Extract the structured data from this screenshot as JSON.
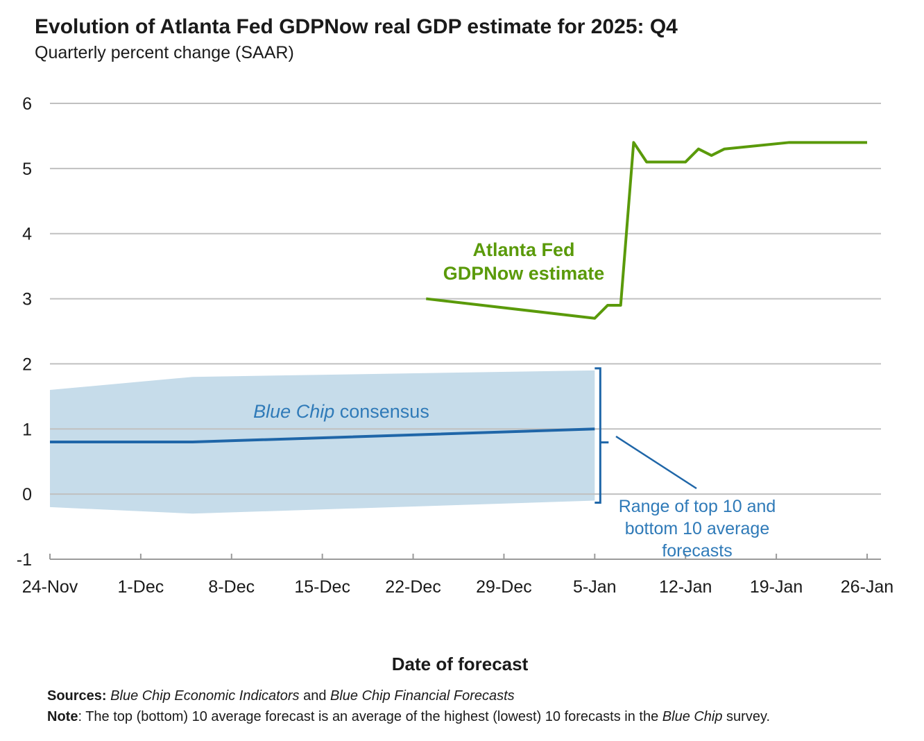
{
  "header": {
    "title": "Evolution of Atlanta Fed GDPNow real GDP estimate for 2025: Q4",
    "subtitle": "Quarterly percent change (SAAR)"
  },
  "colors": {
    "gdpnow": "#5a9a0a",
    "consensus_line": "#1f66a8",
    "band_fill": "#c6dcea",
    "range_label": "#2f7ab8",
    "gridline": "#c0c0c0",
    "axis": "#9a9a9a",
    "text": "#1a1a1a"
  },
  "chart_data": {
    "type": "line",
    "xlabel": "Date of forecast",
    "ylabel": "",
    "x_domain": [
      0,
      63
    ],
    "x_ticks": [
      {
        "pos": 0,
        "label": "24-Nov"
      },
      {
        "pos": 7,
        "label": "1-Dec"
      },
      {
        "pos": 14,
        "label": "8-Dec"
      },
      {
        "pos": 21,
        "label": "15-Dec"
      },
      {
        "pos": 28,
        "label": "22-Dec"
      },
      {
        "pos": 35,
        "label": "29-Dec"
      },
      {
        "pos": 42,
        "label": "5-Jan"
      },
      {
        "pos": 49,
        "label": "12-Jan"
      },
      {
        "pos": 56,
        "label": "19-Jan"
      },
      {
        "pos": 63,
        "label": "26-Jan"
      }
    ],
    "ylim": [
      -1,
      6
    ],
    "y_ticks": [
      -1,
      0,
      1,
      2,
      3,
      4,
      5,
      6
    ],
    "grid": true,
    "series": [
      {
        "name": "Atlanta Fed GDPNow estimate",
        "label_lines": [
          "Atlanta Fed",
          "GDPNow estimate"
        ],
        "points": [
          [
            29,
            3.0
          ],
          [
            42,
            2.7
          ],
          [
            43,
            2.9
          ],
          [
            44,
            2.9
          ],
          [
            45,
            5.4
          ],
          [
            46,
            5.1
          ],
          [
            49,
            5.1
          ],
          [
            50,
            5.3
          ],
          [
            51,
            5.2
          ],
          [
            52,
            5.3
          ],
          [
            57,
            5.4
          ],
          [
            63,
            5.4
          ]
        ]
      },
      {
        "name": "Blue Chip consensus",
        "label_italic": "Blue Chip",
        "label_rest": " consensus",
        "points": [
          [
            0,
            0.8
          ],
          [
            11,
            0.8
          ],
          [
            42,
            1.0
          ]
        ]
      }
    ],
    "band": {
      "name": "Range of top 10 and bottom 10 average forecasts",
      "label_lines": [
        "Range of top 10 and",
        "bottom 10 average",
        "forecasts"
      ],
      "upper": [
        [
          0,
          1.6
        ],
        [
          11,
          1.8
        ],
        [
          42,
          1.9
        ]
      ],
      "lower": [
        [
          0,
          -0.2
        ],
        [
          11,
          -0.3
        ],
        [
          42,
          -0.1
        ]
      ]
    }
  },
  "footer": {
    "sources_label": "Sources:",
    "sources_italic_1": "Blue Chip Economic Indicators",
    "sources_and": " and ",
    "sources_italic_2": "Blue Chip Financial Forecasts",
    "note_label": "Note",
    "note_text_1": ": The top (bottom) 10 average forecast is an average of the highest (lowest) 10 forecasts in the ",
    "note_italic": "Blue Chip",
    "note_text_2": " survey."
  }
}
